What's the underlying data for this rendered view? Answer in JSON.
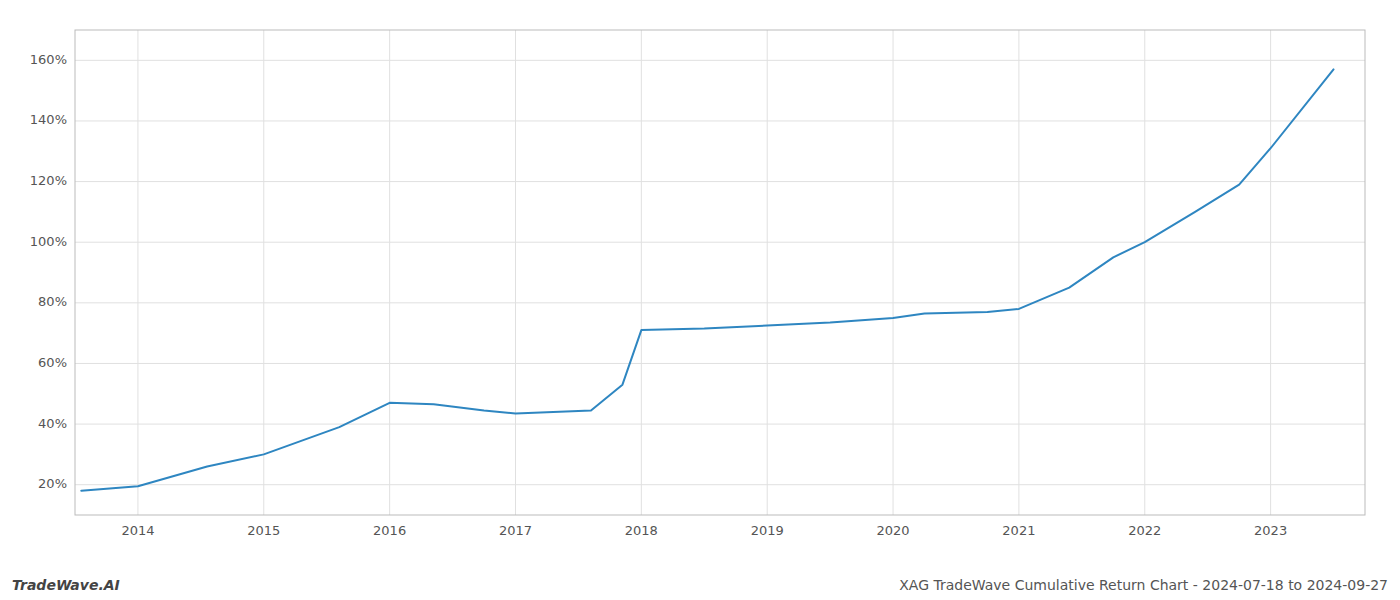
{
  "chart_data": {
    "type": "line",
    "x": [
      2013.55,
      2014.0,
      2014.55,
      2015.0,
      2015.6,
      2016.0,
      2016.35,
      2016.75,
      2017.0,
      2017.6,
      2017.85,
      2018.0,
      2018.5,
      2019.0,
      2019.5,
      2020.0,
      2020.25,
      2020.75,
      2021.0,
      2021.4,
      2021.75,
      2022.0,
      2022.4,
      2022.75,
      2023.0,
      2023.5
    ],
    "values": [
      18.0,
      19.5,
      26.0,
      30.0,
      39.0,
      47.0,
      46.5,
      44.5,
      43.5,
      44.5,
      53.0,
      71.0,
      71.5,
      72.5,
      73.5,
      75.0,
      76.5,
      77.0,
      78.0,
      85.0,
      95.0,
      100.0,
      110.0,
      119.0,
      131.0,
      157.0
    ],
    "color": "#2e86c1",
    "xlim": [
      2013.5,
      2023.75
    ],
    "ylim": [
      10,
      170
    ],
    "xticks": [
      2014,
      2015,
      2016,
      2017,
      2018,
      2019,
      2020,
      2021,
      2022,
      2023
    ],
    "yticks": [
      {
        "value": 20,
        "label": "20%"
      },
      {
        "value": 40,
        "label": "40%"
      },
      {
        "value": 60,
        "label": "60%"
      },
      {
        "value": 80,
        "label": "80%"
      },
      {
        "value": 100,
        "label": "100%"
      },
      {
        "value": 120,
        "label": "120%"
      },
      {
        "value": 140,
        "label": "140%"
      },
      {
        "value": 160,
        "label": "160%"
      }
    ],
    "grid": true,
    "annotations": [
      "TradeWave.AI",
      "XAG TradeWave Cumulative Return Chart - 2024-07-18 to 2024-09-27"
    ]
  }
}
